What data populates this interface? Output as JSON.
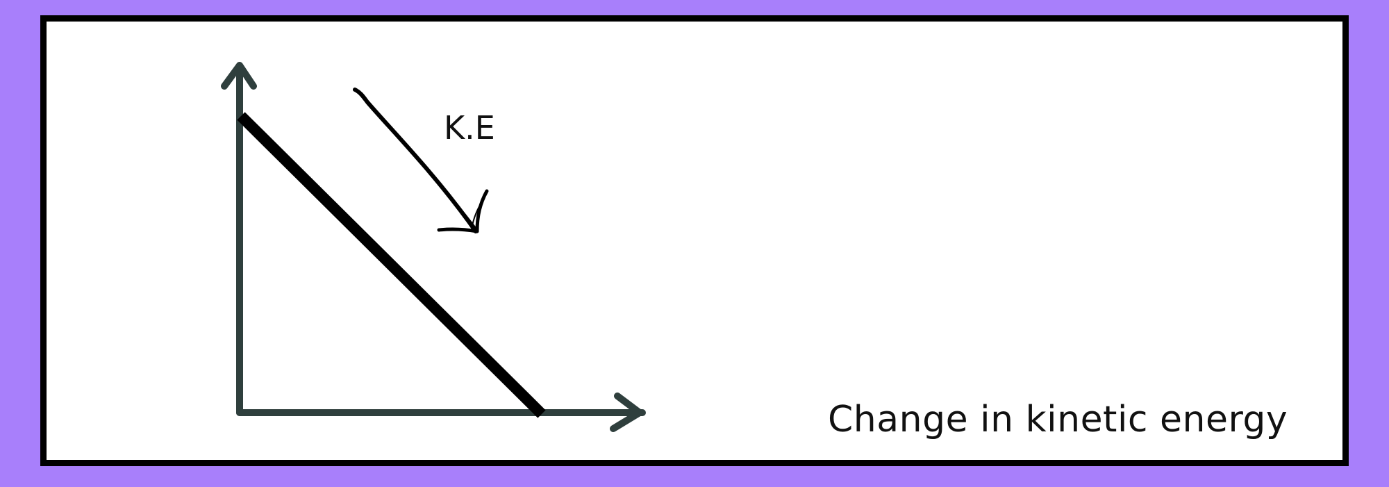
{
  "colors": {
    "background": "#a87ffb",
    "panel": "#ffffff",
    "border": "#000000",
    "axis": "#2f3f3d",
    "line": "#000000",
    "text": "#111111"
  },
  "diagram": {
    "curve_label": "K.E",
    "caption": "Change in kinetic energy",
    "line_direction": "decreasing",
    "icons": {
      "y_axis_arrow": "arrow-up-icon",
      "x_axis_arrow": "arrow-right-icon",
      "annotation_arrow": "hand-drawn-arrow-icon"
    }
  }
}
